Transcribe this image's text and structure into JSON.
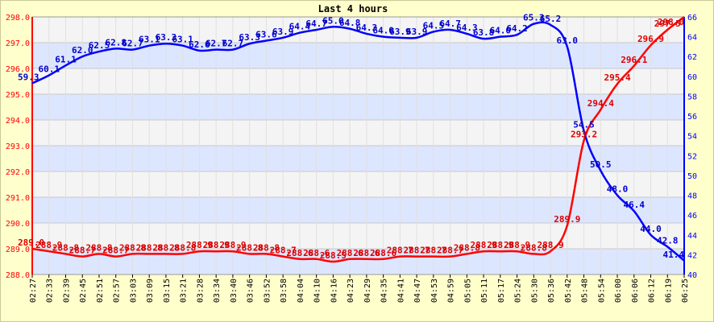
{
  "chart_data": {
    "type": "line",
    "title": "Last 4 hours",
    "grid": true,
    "colors": {
      "background": "#ffffcc",
      "band_blue": "#dde6ff",
      "band_white": "#f4f4f4",
      "series_red": "#ff0000",
      "series_blue": "#0000ff"
    },
    "x_ticks": [
      "02:27",
      "02:33",
      "02:39",
      "02:45",
      "02:51",
      "02:57",
      "03:03",
      "03:09",
      "03:15",
      "03:21",
      "03:28",
      "03:34",
      "03:40",
      "03:46",
      "03:52",
      "03:58",
      "04:04",
      "04:10",
      "04:16",
      "04:23",
      "04:29",
      "04:35",
      "04:41",
      "04:47",
      "04:53",
      "04:59",
      "05:05",
      "05:11",
      "05:17",
      "05:24",
      "05:30",
      "05:36",
      "05:42",
      "05:48",
      "05:54",
      "06:00",
      "06:06",
      "06:12",
      "06:19",
      "06:25"
    ],
    "y_left": {
      "min": 288,
      "max": 298,
      "ticks": [
        "288.0",
        "289.0",
        "290.0",
        "291.0",
        "292.0",
        "293.0",
        "294.0",
        "295.0",
        "296.0",
        "297.0",
        "298.0"
      ]
    },
    "y_right": {
      "min": 40,
      "max": 66,
      "ticks": [
        "40",
        "42",
        "44",
        "46",
        "48",
        "50",
        "52",
        "54",
        "56",
        "58",
        "60",
        "62",
        "64",
        "66"
      ]
    },
    "series": [
      {
        "axis": "left",
        "x": [
          0,
          1,
          2,
          3,
          4,
          5,
          6,
          7,
          8,
          9,
          10,
          11,
          12,
          13,
          14,
          15,
          16,
          17,
          18,
          19,
          20,
          21,
          22,
          23,
          24,
          25,
          26,
          27,
          28,
          29,
          30,
          31,
          32,
          33,
          34,
          35,
          36,
          37,
          38,
          39
        ],
        "values": [
          289.0,
          288.9,
          288.8,
          288.7,
          288.8,
          288.7,
          288.8,
          288.8,
          288.8,
          288.8,
          288.9,
          288.9,
          288.9,
          288.8,
          288.8,
          288.7,
          288.6,
          288.6,
          288.5,
          288.6,
          288.6,
          288.6,
          288.7,
          288.7,
          288.7,
          288.7,
          288.8,
          288.9,
          288.9,
          288.9,
          288.8,
          288.9,
          289.9,
          293.2,
          294.4,
          295.4,
          296.1,
          296.9,
          297.5,
          298.0
        ],
        "labels": [
          "289.0",
          "288.9",
          "288.8",
          "288.7",
          "288.8",
          "288.7",
          "288.8",
          "288.8",
          "288.8",
          "288.8",
          "288.9",
          "288.9",
          "288.9",
          "288.8",
          "288.8",
          "288.7",
          "288.6",
          "288.6",
          "288.5",
          "288.6",
          "288.6",
          "288.6",
          "288.7",
          "288.7",
          "288.7",
          "288.7",
          "288.8",
          "288.9",
          "288.9",
          "288.9",
          "288.8",
          "288.9",
          "289.9",
          "293.2",
          "294.4",
          "295.4",
          "296.1",
          "296.9",
          "297.5",
          "298.0"
        ]
      },
      {
        "axis": "right",
        "x": [
          0,
          1,
          2,
          3,
          4,
          5,
          6,
          7,
          8,
          9,
          10,
          11,
          12,
          13,
          14,
          15,
          16,
          17,
          18,
          19,
          20,
          21,
          22,
          23,
          24,
          25,
          26,
          27,
          28,
          29,
          30,
          31,
          32,
          33,
          34,
          35,
          36,
          37,
          38,
          39
        ],
        "values": [
          59.3,
          60.1,
          61.1,
          62.0,
          62.5,
          62.8,
          62.7,
          63.1,
          63.3,
          63.1,
          62.6,
          62.7,
          62.7,
          63.3,
          63.6,
          63.9,
          64.4,
          64.7,
          65.0,
          64.8,
          64.3,
          64.0,
          63.9,
          63.9,
          64.5,
          64.7,
          64.3,
          63.8,
          64.0,
          64.2,
          65.3,
          65.2,
          63.0,
          54.5,
          50.5,
          48.0,
          46.4,
          44.0,
          42.8,
          41.4
        ],
        "labels": [
          "59.3",
          "60.1",
          "61.1",
          "62.0",
          "62.5",
          "62.8",
          "62.7",
          "63.1",
          "63.3",
          "63.1",
          "62.6",
          "62.7",
          "62.7",
          "63.3",
          "63.6",
          "63.9",
          "64.4",
          "64.7",
          "65.0",
          "64.8",
          "64.3",
          "64.0",
          "63.9",
          "63.9",
          "64.5",
          "64.7",
          "64.3",
          "63.8",
          "64.0",
          "64.2",
          "65.3",
          "65.2",
          "63.0",
          "54.5",
          "50.5",
          "48.0",
          "46.4",
          "44.0",
          "42.8",
          "41.4"
        ]
      }
    ]
  }
}
